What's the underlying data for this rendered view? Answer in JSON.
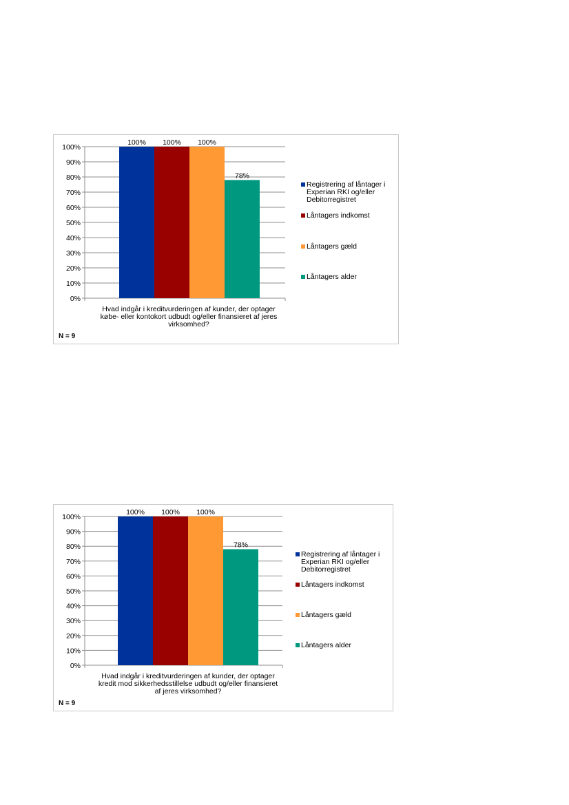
{
  "chart_data": [
    {
      "type": "bar",
      "categories": [
        "Registrering af låntager i Experian RKI og/eller Debitorregistret",
        "Låntagers indkomst",
        "Låntagers gæld",
        "Låntagers alder"
      ],
      "values": [
        100,
        100,
        100,
        78
      ],
      "value_labels": [
        "100%",
        "100%",
        "100%",
        "78%"
      ],
      "colors": [
        "#00329b",
        "#990000",
        "#ff9933",
        "#009980"
      ],
      "legend_lines": [
        [
          "Registrering af låntager i",
          "Experian RKI og/eller",
          "Debitorregistret"
        ],
        [
          "Låntagers indkomst"
        ],
        [
          "Låntagers gæld"
        ],
        [
          "Låntagers alder"
        ]
      ],
      "ylim": [
        0,
        100
      ],
      "yticks": [
        "0%",
        "10%",
        "20%",
        "30%",
        "40%",
        "50%",
        "60%",
        "70%",
        "80%",
        "90%",
        "100%"
      ],
      "xlabel_lines": [
        "Hvad indgår i kreditvurderingen af kunder, der optager",
        "købe- eller kontokort udbudt og/eller finansieret af jeres",
        "virksomhed?"
      ],
      "note": "N = 9",
      "grid": true,
      "legend_position": "right"
    },
    {
      "type": "bar",
      "categories": [
        "Registrering af låntager i Experian RKI og/eller Debitorregistret",
        "Låntagers indkomst",
        "Låntagers gæld",
        "Låntagers alder"
      ],
      "values": [
        100,
        100,
        100,
        78
      ],
      "value_labels": [
        "100%",
        "100%",
        "100%",
        "78%"
      ],
      "colors": [
        "#00329b",
        "#990000",
        "#ff9933",
        "#009980"
      ],
      "legend_lines": [
        [
          "Registrering af låntager i",
          "Experian RKI og/eller",
          "Debitorregistret"
        ],
        [
          "Låntagers indkomst"
        ],
        [
          "Låntagers gæld"
        ],
        [
          "Låntagers alder"
        ]
      ],
      "ylim": [
        0,
        100
      ],
      "yticks": [
        "0%",
        "10%",
        "20%",
        "30%",
        "40%",
        "50%",
        "60%",
        "70%",
        "80%",
        "90%",
        "100%"
      ],
      "xlabel_lines": [
        "Hvad indgår i kreditvurderingen af kunder, der optager",
        "kredit mod sikkerhedsstillelse udbudt og/eller finansieret",
        "af jeres virksomhed?"
      ],
      "note": "N = 9",
      "grid": true,
      "legend_position": "right"
    }
  ]
}
